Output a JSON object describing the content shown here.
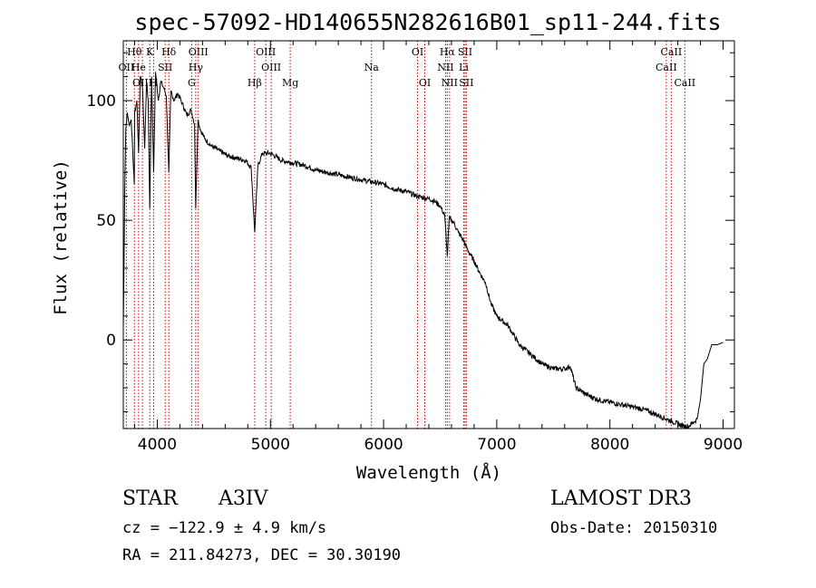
{
  "chart_data": {
    "type": "line",
    "title": "spec-57092-HD140655N282616B01_sp11-244.fits",
    "xlabel": "Wavelength (Å)",
    "ylabel": "Flux (relative)",
    "xlim": [
      3700,
      9100
    ],
    "ylim": [
      -37,
      125
    ],
    "xticks": [
      4000,
      5000,
      6000,
      7000,
      8000,
      9000
    ],
    "xtick_labels": [
      "4000",
      "5000",
      "6000",
      "7000",
      "8000",
      "9000"
    ],
    "yticks": [
      0,
      50,
      100
    ],
    "ytick_labels": [
      "0",
      "50",
      "100"
    ],
    "grid": false,
    "series": [
      {
        "name": "spectrum",
        "x": [
          3700,
          3705,
          3712,
          3722,
          3735,
          3750,
          3770,
          3797,
          3800,
          3820,
          3835,
          3850,
          3870,
          3889,
          3905,
          3920,
          3934,
          3950,
          3968,
          3985,
          4010,
          4030,
          4060,
          4080,
          4102,
          4120,
          4150,
          4180,
          4220,
          4260,
          4300,
          4330,
          4340,
          4360,
          4380,
          4420,
          4480,
          4550,
          4620,
          4700,
          4780,
          4830,
          4861,
          4890,
          4930,
          5000,
          5100,
          5200,
          5300,
          5400,
          5500,
          5600,
          5700,
          5800,
          5900,
          6000,
          6100,
          6200,
          6300,
          6400,
          6450,
          6500,
          6540,
          6563,
          6580,
          6620,
          6660,
          6700,
          6750,
          6800,
          6850,
          6900,
          6950,
          7000,
          7050,
          7100,
          7200,
          7300,
          7400,
          7500,
          7600,
          7650,
          7700,
          7800,
          7900,
          8000,
          8100,
          8200,
          8300,
          8400,
          8500,
          8600,
          8650,
          8700,
          8720,
          8750,
          8770,
          8800,
          8830,
          8860,
          8900,
          8950,
          9000
        ],
        "y": [
          5,
          25,
          60,
          88,
          95,
          90,
          92,
          65,
          95,
          100,
          78,
          110,
          105,
          80,
          108,
          100,
          55,
          110,
          70,
          112,
          100,
          108,
          105,
          102,
          70,
          104,
          100,
          103,
          99,
          94,
          96,
          90,
          55,
          92,
          88,
          84,
          81,
          79,
          77,
          76,
          75,
          72,
          45,
          73,
          78,
          78,
          75,
          74,
          73,
          71,
          70,
          69,
          68,
          67,
          66,
          65,
          63,
          62,
          60,
          59,
          58,
          56,
          52,
          35,
          51,
          49,
          45,
          42,
          37,
          33,
          28,
          24,
          15,
          10,
          8,
          6,
          -2,
          -6,
          -10,
          -12,
          -12,
          -11,
          -20,
          -23,
          -25,
          -26,
          -27,
          -28,
          -29,
          -31,
          -33,
          -35,
          -36,
          -36,
          -35,
          -34,
          -33,
          -25,
          -10,
          -8,
          -2,
          -2,
          -1
        ]
      }
    ],
    "lines": [
      {
        "label": "Hθ",
        "x": 3798,
        "row": 1
      },
      {
        "label": "OII",
        "x": 3727,
        "row": 2
      },
      {
        "label": "He",
        "x": 3835,
        "row": 2
      },
      {
        "label": "OIII",
        "x": 3869,
        "row": 3
      },
      {
        "label": "K",
        "x": 3934,
        "row": 1
      },
      {
        "label": "H",
        "x": 3968,
        "row": 3
      },
      {
        "label": "SII",
        "x": 4070,
        "row": 2
      },
      {
        "label": "Hδ",
        "x": 4102,
        "row": 1
      },
      {
        "label": "OIII",
        "x": 4363,
        "row": 1
      },
      {
        "label": "Hγ",
        "x": 4340,
        "row": 2
      },
      {
        "label": "G",
        "x": 4304,
        "row": 3
      },
      {
        "label": "OIII",
        "x": 4959,
        "row": 1
      },
      {
        "label": "OIII",
        "x": 5007,
        "row": 2
      },
      {
        "label": "Hβ",
        "x": 4861,
        "row": 3
      },
      {
        "label": "Mg",
        "x": 5175,
        "row": 3
      },
      {
        "label": "Na",
        "x": 5893,
        "row": 2
      },
      {
        "label": "OI",
        "x": 6300,
        "row": 1
      },
      {
        "label": "OI",
        "x": 6364,
        "row": 3
      },
      {
        "label": "Hα",
        "x": 6563,
        "row": 1
      },
      {
        "label": "NII",
        "x": 6548,
        "row": 2
      },
      {
        "label": "NII",
        "x": 6583,
        "row": 3
      },
      {
        "label": "SII",
        "x": 6720,
        "row": 1
      },
      {
        "label": "Li",
        "x": 6708,
        "row": 2
      },
      {
        "label": "SII",
        "x": 6731,
        "row": 3
      },
      {
        "label": "CaII",
        "x": 8542,
        "row": 1
      },
      {
        "label": "CaII",
        "x": 8498,
        "row": 2
      },
      {
        "label": "CaII",
        "x": 8662,
        "row": 3
      }
    ]
  },
  "info": {
    "object_class": "STAR",
    "subclass": "A3IV",
    "cz": "cz = −122.9 ± 4.9 km/s",
    "radec": "RA = 211.84273, DEC =  30.30190",
    "survey": "LAMOST DR3",
    "obs_date": "Obs-Date: 20150310"
  },
  "colors": {
    "line_markers": "#cc0000",
    "spectrum": "#000000",
    "axes": "#000000"
  }
}
